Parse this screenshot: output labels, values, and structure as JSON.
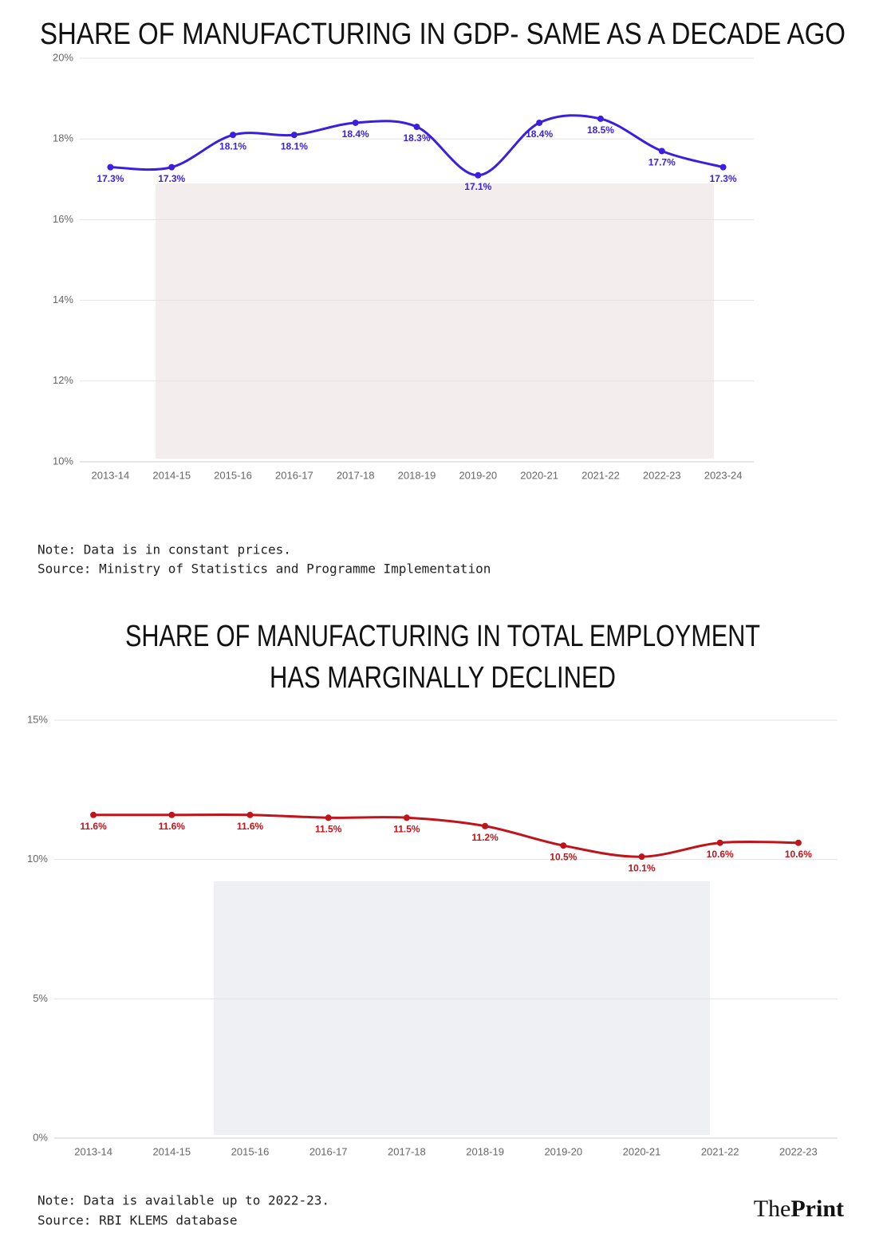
{
  "chart_data": [
    {
      "type": "line",
      "title": [
        "SHARE OF MANUFACTURING IN GDP- SAME AS A DECADE AGO"
      ],
      "categories": [
        "2013-14",
        "2014-15",
        "2015-16",
        "2016-17",
        "2017-18",
        "2018-19",
        "2019-20",
        "2020-21",
        "2021-22",
        "2022-23",
        "2023-24"
      ],
      "series": [
        {
          "color": "#3a1fe0",
          "values": [
            17.3,
            17.3,
            18.1,
            18.1,
            18.4,
            18.3,
            17.1,
            18.4,
            18.5,
            17.7,
            17.3
          ],
          "value_labels": [
            "17.3%",
            "17.3%",
            "18.1%",
            "18.1%",
            "18.4%",
            "18.3%",
            "17.1%",
            "18.4%",
            "18.5%",
            "17.7%",
            "17.3%"
          ]
        }
      ],
      "ylim": [
        10,
        20
      ],
      "yticks": [
        {
          "value": 10,
          "label": "10%"
        },
        {
          "value": 12,
          "label": "12%"
        },
        {
          "value": 14,
          "label": "14%"
        },
        {
          "value": 16,
          "label": "16%"
        },
        {
          "value": 18,
          "label": "18%"
        },
        {
          "value": 20,
          "label": "20%"
        }
      ],
      "grid": true,
      "note": "Note: Data is in constant prices.",
      "source": "Source: Ministry of Statistics and Programme Implementation"
    },
    {
      "type": "line",
      "title": [
        "SHARE OF MANUFACTURING IN TOTAL EMPLOYMENT",
        "HAS MARGINALLY DECLINED"
      ],
      "categories": [
        "2013-14",
        "2014-15",
        "2015-16",
        "2016-17",
        "2017-18",
        "2018-19",
        "2019-20",
        "2020-21",
        "2021-22",
        "2022-23"
      ],
      "series": [
        {
          "color": "#c0141a",
          "values": [
            11.6,
            11.6,
            11.6,
            11.5,
            11.5,
            11.2,
            10.5,
            10.1,
            10.6,
            10.6
          ],
          "value_labels": [
            "11.6%",
            "11.6%",
            "11.6%",
            "11.5%",
            "11.5%",
            "11.2%",
            "10.5%",
            "10.1%",
            "10.6%",
            "10.6%"
          ]
        }
      ],
      "ylim": [
        0,
        15
      ],
      "yticks": [
        {
          "value": 0,
          "label": "0%"
        },
        {
          "value": 5,
          "label": "5%"
        },
        {
          "value": 10,
          "label": "10%"
        },
        {
          "value": 15,
          "label": "15%"
        }
      ],
      "grid": true,
      "note": "Note: Data is available up to 2022-23.",
      "source": "Source: RBI KLEMS database"
    }
  ],
  "logo": [
    "The",
    "Print"
  ]
}
